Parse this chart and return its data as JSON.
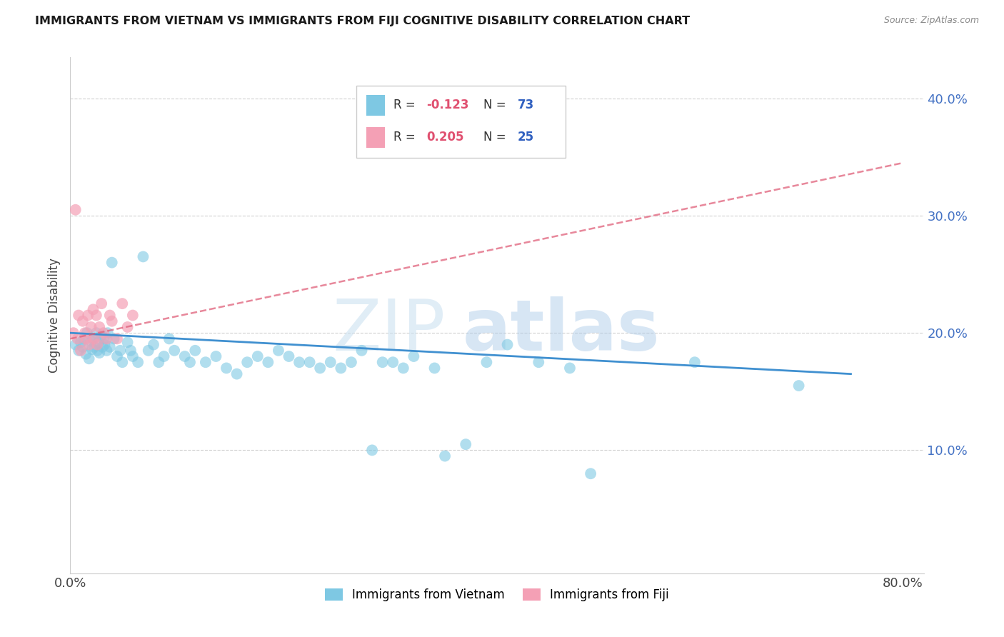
{
  "title": "IMMIGRANTS FROM VIETNAM VS IMMIGRANTS FROM FIJI COGNITIVE DISABILITY CORRELATION CHART",
  "source": "Source: ZipAtlas.com",
  "ylabel": "Cognitive Disability",
  "xlim": [
    0.0,
    0.82
  ],
  "ylim": [
    -0.005,
    0.435
  ],
  "yticks": [
    0.1,
    0.2,
    0.3,
    0.4
  ],
  "ytick_labels": [
    "10.0%",
    "20.0%",
    "30.0%",
    "40.0%"
  ],
  "legend_r_vietnam": "-0.123",
  "legend_n_vietnam": "73",
  "legend_r_fiji": "0.205",
  "legend_n_fiji": "25",
  "color_vietnam": "#7ec8e3",
  "color_fiji": "#f4a0b5",
  "color_trendline_vietnam": "#4090d0",
  "color_trendline_fiji": "#e0607a",
  "color_right_yticks": "#4472c4",
  "color_grid": "#d0d0d0",
  "vietnam_x": [
    0.005,
    0.008,
    0.01,
    0.012,
    0.013,
    0.015,
    0.016,
    0.018,
    0.02,
    0.021,
    0.022,
    0.023,
    0.025,
    0.026,
    0.027,
    0.028,
    0.03,
    0.031,
    0.032,
    0.033,
    0.035,
    0.036,
    0.038,
    0.04,
    0.042,
    0.045,
    0.048,
    0.05,
    0.055,
    0.058,
    0.06,
    0.065,
    0.07,
    0.075,
    0.08,
    0.085,
    0.09,
    0.095,
    0.1,
    0.11,
    0.115,
    0.12,
    0.13,
    0.14,
    0.15,
    0.16,
    0.17,
    0.18,
    0.19,
    0.2,
    0.21,
    0.22,
    0.23,
    0.24,
    0.25,
    0.26,
    0.27,
    0.28,
    0.29,
    0.3,
    0.31,
    0.32,
    0.33,
    0.35,
    0.36,
    0.38,
    0.4,
    0.42,
    0.45,
    0.48,
    0.5,
    0.6,
    0.7
  ],
  "vietnam_y": [
    0.19,
    0.185,
    0.192,
    0.188,
    0.195,
    0.182,
    0.2,
    0.178,
    0.193,
    0.186,
    0.195,
    0.188,
    0.2,
    0.185,
    0.192,
    0.183,
    0.198,
    0.188,
    0.195,
    0.19,
    0.185,
    0.2,
    0.188,
    0.26,
    0.195,
    0.18,
    0.185,
    0.175,
    0.192,
    0.185,
    0.18,
    0.175,
    0.265,
    0.185,
    0.19,
    0.175,
    0.18,
    0.195,
    0.185,
    0.18,
    0.175,
    0.185,
    0.175,
    0.18,
    0.17,
    0.165,
    0.175,
    0.18,
    0.175,
    0.185,
    0.18,
    0.175,
    0.175,
    0.17,
    0.175,
    0.17,
    0.175,
    0.185,
    0.1,
    0.175,
    0.175,
    0.17,
    0.18,
    0.17,
    0.095,
    0.105,
    0.175,
    0.19,
    0.175,
    0.17,
    0.08,
    0.175,
    0.155
  ],
  "fiji_x": [
    0.003,
    0.005,
    0.007,
    0.008,
    0.01,
    0.012,
    0.014,
    0.015,
    0.017,
    0.018,
    0.02,
    0.022,
    0.023,
    0.025,
    0.026,
    0.028,
    0.03,
    0.032,
    0.035,
    0.038,
    0.04,
    0.045,
    0.05,
    0.055,
    0.06
  ],
  "fiji_y": [
    0.2,
    0.305,
    0.195,
    0.215,
    0.185,
    0.21,
    0.2,
    0.195,
    0.215,
    0.19,
    0.205,
    0.22,
    0.195,
    0.215,
    0.19,
    0.205,
    0.225,
    0.2,
    0.195,
    0.215,
    0.21,
    0.195,
    0.225,
    0.205,
    0.215
  ],
  "vietnam_trend_x": [
    0.0,
    0.75
  ],
  "vietnam_trend_y": [
    0.2,
    0.165
  ],
  "fiji_trend_x": [
    0.0,
    0.8
  ],
  "fiji_trend_y": [
    0.195,
    0.345
  ]
}
